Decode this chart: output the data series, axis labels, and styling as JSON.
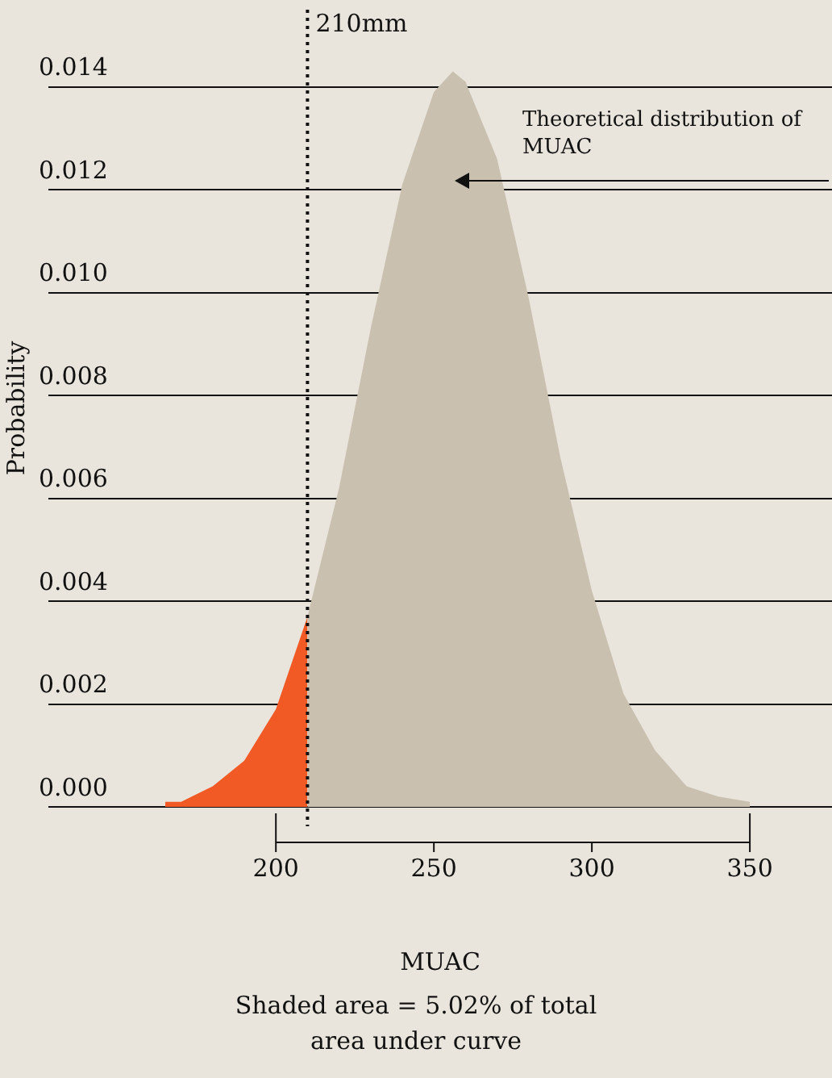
{
  "chart_data": {
    "type": "area",
    "xlabel": "MUAC",
    "ylabel": "Probability",
    "xlim": [
      128,
      376
    ],
    "xticks": [
      200,
      250,
      300,
      350
    ],
    "ylim": [
      0,
      0.0155
    ],
    "yticks": [
      {
        "value": 0,
        "label": "0.000"
      },
      0.002,
      0.004,
      0.006,
      0.008,
      {
        "value": 0.01,
        "label": "0.010"
      },
      0.012,
      0.014
    ],
    "grid": "y",
    "legend": false,
    "marker": "none",
    "series": [
      {
        "color": "#f15a24",
        "x": [
          165,
          170,
          180,
          190,
          200,
          210
        ],
        "values": [
          0.0001,
          0.0001,
          0.0004,
          0.0009,
          0.0019,
          0.0037
        ]
      },
      {
        "color": "#c9c0b0",
        "x": [
          210,
          220,
          230,
          240,
          250,
          256,
          260,
          270,
          280,
          290,
          300,
          310,
          320,
          330,
          340,
          350
        ],
        "values": [
          0.0037,
          0.0062,
          0.0093,
          0.0121,
          0.0139,
          0.0143,
          0.0141,
          0.0126,
          0.0099,
          0.0068,
          0.0042,
          0.0022,
          0.0011,
          0.0004,
          0.0002,
          0.0001
        ]
      }
    ],
    "ref_lines": [
      {
        "axis": "x",
        "value": 210,
        "label": "210mm",
        "line_style": "dotted",
        "color": "#111111"
      }
    ],
    "annotations": [
      "Theoretical distribution of MUAC",
      "Shaded area = 5.02% of total area under curve"
    ]
  }
}
